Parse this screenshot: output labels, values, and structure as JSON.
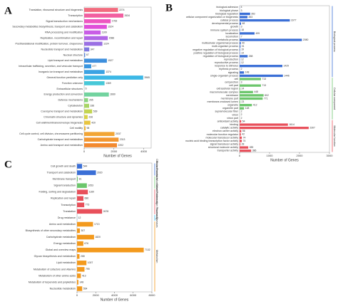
{
  "chart_data": [
    {
      "type": "bar",
      "orientation": "horizontal",
      "panel": "A",
      "xlabel": "Number of Genes",
      "categories": [
        "Translation, ribosomal structure and biogenesis",
        "Transcription",
        "Signal transduction mechanisms",
        "Secondary metabolites biosynthesis, transport and catabolism",
        "RNA processing and modification",
        "Replication, recombination and repair",
        "Posttranslational modification, protein turnover, chaperones",
        "Nucleotide transport and metabolism",
        "Nuclear structure",
        "Lipid transport and metabolism",
        "Intracellular trafficking, secretion, and vesicular transport",
        "Inorganic ion transport and metabolism",
        "General function prediction only",
        "Function unknown",
        "Extracellular structures",
        "Energy production and conversion",
        "Defense mechanisms",
        "Cytoskeleton",
        "Coenzyme transport and metabolism",
        "Chromatin structure and dynamics",
        "Cell wall/membrane/envelope biogenesis",
        "Cell motility",
        "Cell cycle control, cell division, chromosome partitioning",
        "Carbohydrate transport and metabolism",
        "Amino acid transport and metabolism"
      ],
      "values": [
        2274,
        2634,
        1783,
        1524,
        1109,
        1586,
        1224,
        347,
        67,
        1527,
        477,
        1374,
        3965,
        1369,
        6,
        1660,
        265,
        336,
        539,
        236,
        420,
        98,
        2037,
        2313,
        2202
      ],
      "colors": [
        "#f26b7f",
        "#f25fa0",
        "#ee56c0",
        "#e04fd9",
        "#c95de6",
        "#b167e6",
        "#9a6fe3",
        "#7f79e0",
        "#5a86dc",
        "#3d8fdd",
        "#3a96e0",
        "#3ba3e3",
        "#3cb8e6",
        "#47c8d8",
        "#5acfc0",
        "#72d39f",
        "#8bd47f",
        "#a8d565",
        "#c3d552",
        "#d9d247",
        "#e8c53f",
        "#efb539",
        "#f2a535",
        "#f39731",
        "#f38a2f"
      ],
      "xlim": [
        0,
        4500
      ],
      "xticks": [
        0,
        2000,
        4000
      ]
    },
    {
      "type": "bar",
      "orientation": "horizontal",
      "panel": "B",
      "xlabel": "Number of Genes",
      "groups": [
        {
          "name": "Biological process",
          "color": "#3b6fd6",
          "categories": [
            "biological adhesion",
            "biological phase",
            "biological regulation",
            "cellular component organization or biogenesis",
            "cellular process",
            "developmental process",
            "growth",
            "immune system process",
            "localization",
            "locomotion",
            "metabolic process",
            "multicellular organismal process",
            "multi-organism process",
            "negative regulation of biological process",
            "positive regulation of biological process",
            "regulation of biological process",
            "reproduction",
            "reproductive process",
            "response to stimulus",
            "rhythmic process",
            "signaling",
            "single-organism process"
          ],
          "values": [
            4,
            3,
            352,
            263,
            1677,
            48,
            3,
            18,
            499,
            7,
            2080,
            40,
            31,
            19,
            14,
            268,
            12,
            12,
            1429,
            2,
            148,
            1446
          ]
        },
        {
          "name": "Cellular component",
          "color": "#6cc66c",
          "categories": [
            "cell",
            "cell junction",
            "cell part",
            "extracellular region",
            "macromolecular complex",
            "membrane",
            "membrane part",
            "membrane-enclosed lumen",
            "organelle",
            "organelle part",
            "supramolecular fiber",
            "virion",
            "virion part"
          ],
          "values": [
            713,
            3,
            713,
            24,
            448,
            802,
            771,
            23,
            412,
            148,
            2,
            2,
            2
          ]
        },
        {
          "name": "Molecular function",
          "color": "#e8505b",
          "categories": [
            "antioxidant activity",
            "binding",
            "catalytic activity",
            "electron carrier activity",
            "molecular function regulator",
            "molecular transducer activity",
            "nucleic acid binding transcription factor activity",
            "signal transducer activity",
            "structural molecule activity",
            "transporter activity"
          ],
          "values": [
            54,
            1614,
            2307,
            56,
            42,
            74,
            74,
            28,
            289,
            386
          ]
        }
      ],
      "xlim": [
        0,
        3000
      ],
      "xticks": [
        0,
        1000,
        2000,
        3000
      ]
    },
    {
      "type": "bar",
      "orientation": "horizontal",
      "panel": "C",
      "xlabel": "Number of Genes",
      "groups": [
        {
          "name": "Cellular Processes",
          "color": "#3b6fd6",
          "categories": [
            "Cell growth and death",
            "Transport and catabolism"
          ],
          "values": [
            544,
            2020
          ]
        },
        {
          "name": "Environmental Information Processing",
          "color": "#6cc66c",
          "categories": [
            "Membrane transport",
            "Signal transduction"
          ],
          "values": [
            81,
            1053
          ]
        },
        {
          "name": "Genetic Information Processing",
          "color": "#e8505b",
          "categories": [
            "Folding, sorting and degradation",
            "Replication and repair",
            "Transcription",
            "Translation"
          ],
          "values": [
            1160,
            686,
            773,
            2678
          ]
        },
        {
          "name": "Human Diseases",
          "color": "#2fb7e8",
          "categories": [
            "Drug resistance"
          ],
          "values": [
            12
          ]
        },
        {
          "name": "Metabolism",
          "color": "#f39a1e",
          "categories": [
            "Amino acid metabolism",
            "Biosynthesis of other secondary metabolites",
            "Carbohydrate metabolism",
            "Energy metabolism",
            "Global and overview maps",
            "Glycan biosynthesis and metabolism",
            "Lipid metabolism",
            "Metabolism of cofactors and vitamins",
            "Metabolism of other amino acids",
            "Metabolism of terpenoids and polyketides",
            "Nucleotide metabolism"
          ],
          "values": [
            1713,
            307,
            1820,
            676,
            7132,
            268,
            1007,
            799,
            413,
            148,
            554
          ]
        }
      ],
      "xlim": [
        0,
        8000
      ],
      "xticks": [
        0,
        2000,
        4000,
        6000,
        8000
      ]
    }
  ]
}
